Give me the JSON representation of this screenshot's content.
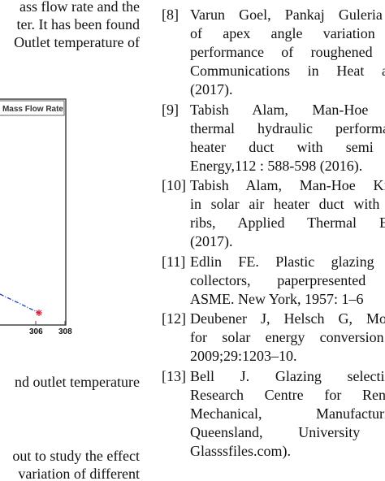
{
  "left_column": {
    "paragraph_top": [
      "ass flow rate and the",
      "ter. It has been found",
      "Outlet temperature of"
    ],
    "figure": {
      "legend": "Mass Flow Rate",
      "x_ticks": [
        "306",
        "308"
      ]
    },
    "caption": "nd outlet temperature",
    "paragraph_bottom": [
      "out to study the effect",
      "variation of different"
    ]
  },
  "references": [
    {
      "label": "[8]",
      "lines": [
        "Varun Goel, Pankaj Guleria a",
        "of apex angle variation o",
        "performance of roughened tri",
        "Communications in Heat and",
        "(2017)."
      ]
    },
    {
      "label": "[9]",
      "lines": [
        "Tabish Alam, Man-Hoe K",
        "thermal hydraulic performanc",
        "heater duct with semi e",
        "Energy,112 : 588-598 (2016)."
      ]
    },
    {
      "label": "[10]",
      "lines": [
        "Tabish Alam, Man-Hoe Kim,",
        "in solar air heater duct with co",
        "ribs, Applied Thermal Eng",
        "(2017)."
      ]
    },
    {
      "label": "[11]",
      "lines": [
        "Edlin FE. Plastic glazing fo",
        "collectors, paperpresented at",
        "ASME. New York, 1957: 1–6"
      ]
    },
    {
      "label": "[12]",
      "lines": [
        "Deubener J, Helsch G, Moise",
        "for solar energy conversion :",
        "2009;29:1203–10."
      ]
    },
    {
      "label": "[13]",
      "lines": [
        "Bell J. Glazing selection.",
        "Research Centre for Renew",
        "Mechanical, Manufacturing",
        "Queensland, University o",
        "Glasssfiles.com)."
      ]
    }
  ]
}
